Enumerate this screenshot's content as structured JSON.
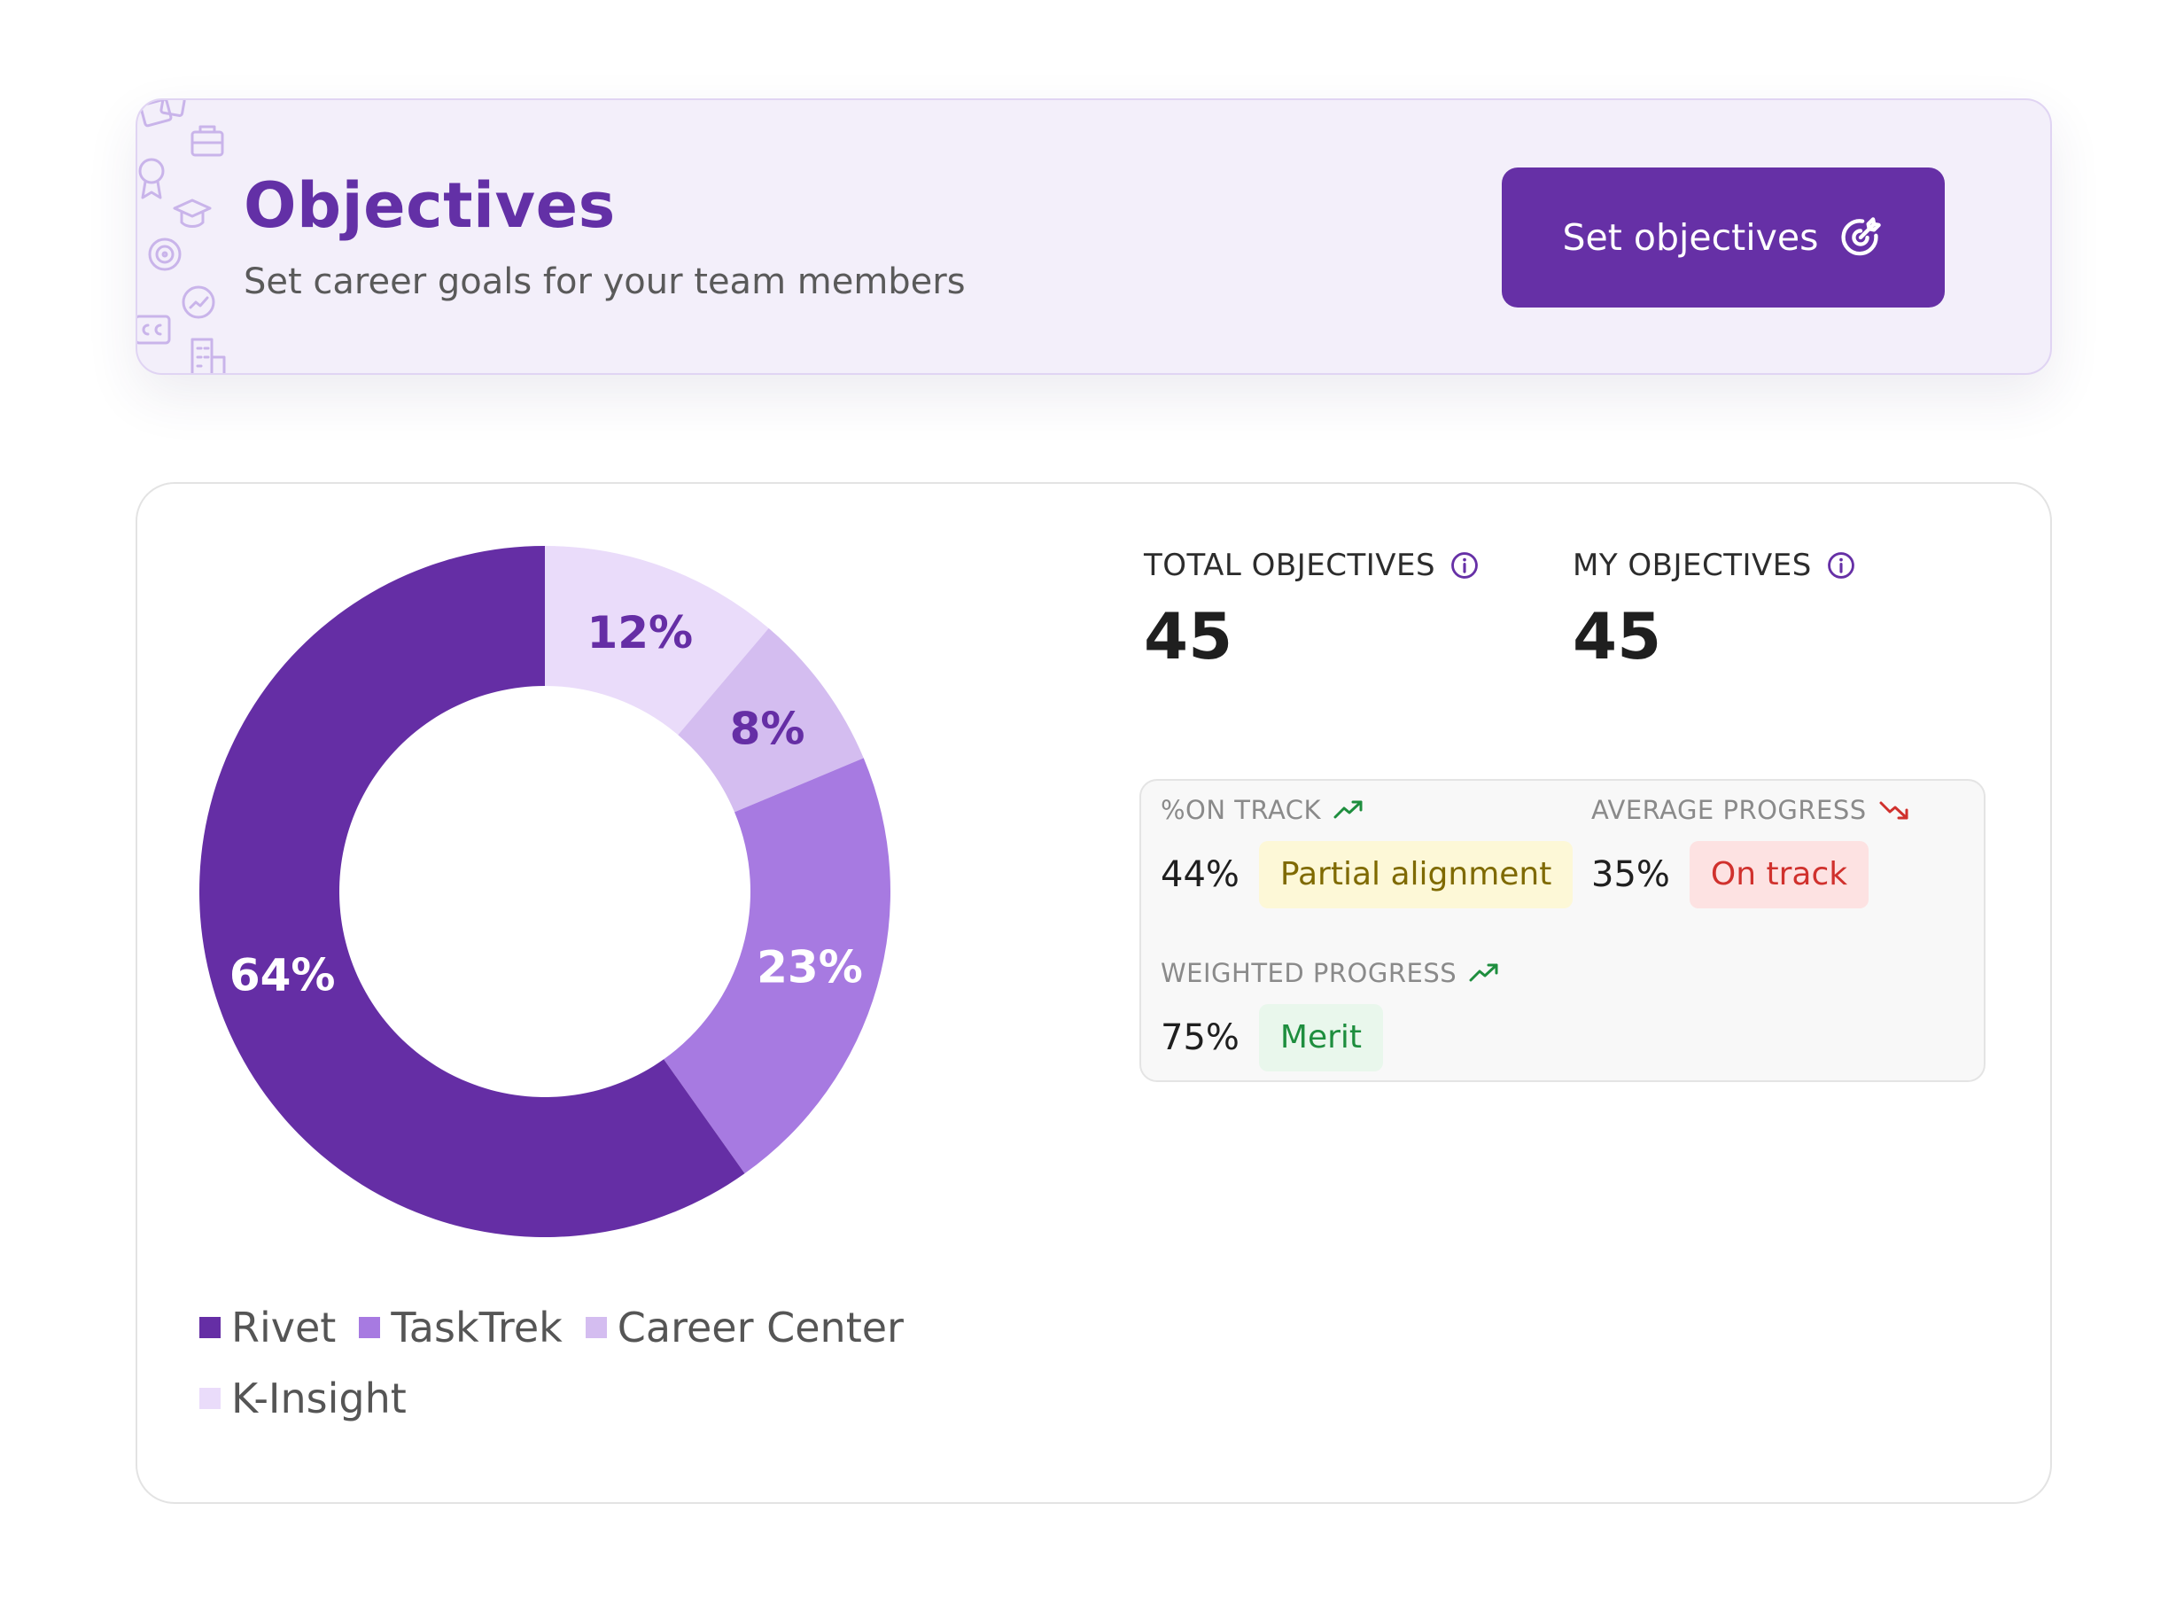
{
  "header": {
    "title": "Objectives",
    "subtitle": "Set career goals for your team members",
    "cta_label": "Set objectives",
    "cta_icon": "target-arrow-icon"
  },
  "chart_data": {
    "type": "pie",
    "categories": [
      "Rivet",
      "TaskTrek",
      "Career Center",
      "K-Insight"
    ],
    "values": [
      64,
      23,
      8,
      12
    ],
    "labels": [
      "64%",
      "23%",
      "8%",
      "12%"
    ],
    "colors": [
      "#652ea5",
      "#a77ae1",
      "#d4bdf0",
      "#eadcfa"
    ],
    "label_colors": [
      "#ffffff",
      "#ffffff",
      "#652ea5",
      "#652ea5"
    ],
    "style": "donut",
    "legend": "bottom"
  },
  "stats": {
    "total": {
      "label": "TOTAL OBJECTIVES",
      "value": "45"
    },
    "mine": {
      "label": "MY OBJECTIVES",
      "value": "45"
    }
  },
  "metrics": {
    "on_track": {
      "label": "%ON TRACK",
      "trend": "up",
      "value": "44%",
      "badge": "Partial alignment",
      "badge_bg": "#fdf8d7",
      "badge_fg": "#7f6a00"
    },
    "average": {
      "label": "AVERAGE PROGRESS",
      "trend": "down",
      "value": "35%",
      "badge": "On track",
      "badge_bg": "#fde2e2",
      "badge_fg": "#d0312d"
    },
    "weighted": {
      "label": "WEIGHTED PROGRESS",
      "trend": "up",
      "value": "75%",
      "badge": "Merit",
      "badge_bg": "#e9f7ec",
      "badge_fg": "#1e8e3e"
    }
  },
  "colors": {
    "accent": "#6630a6",
    "trend_up": "#1e8e3e",
    "trend_down": "#d0312d"
  }
}
